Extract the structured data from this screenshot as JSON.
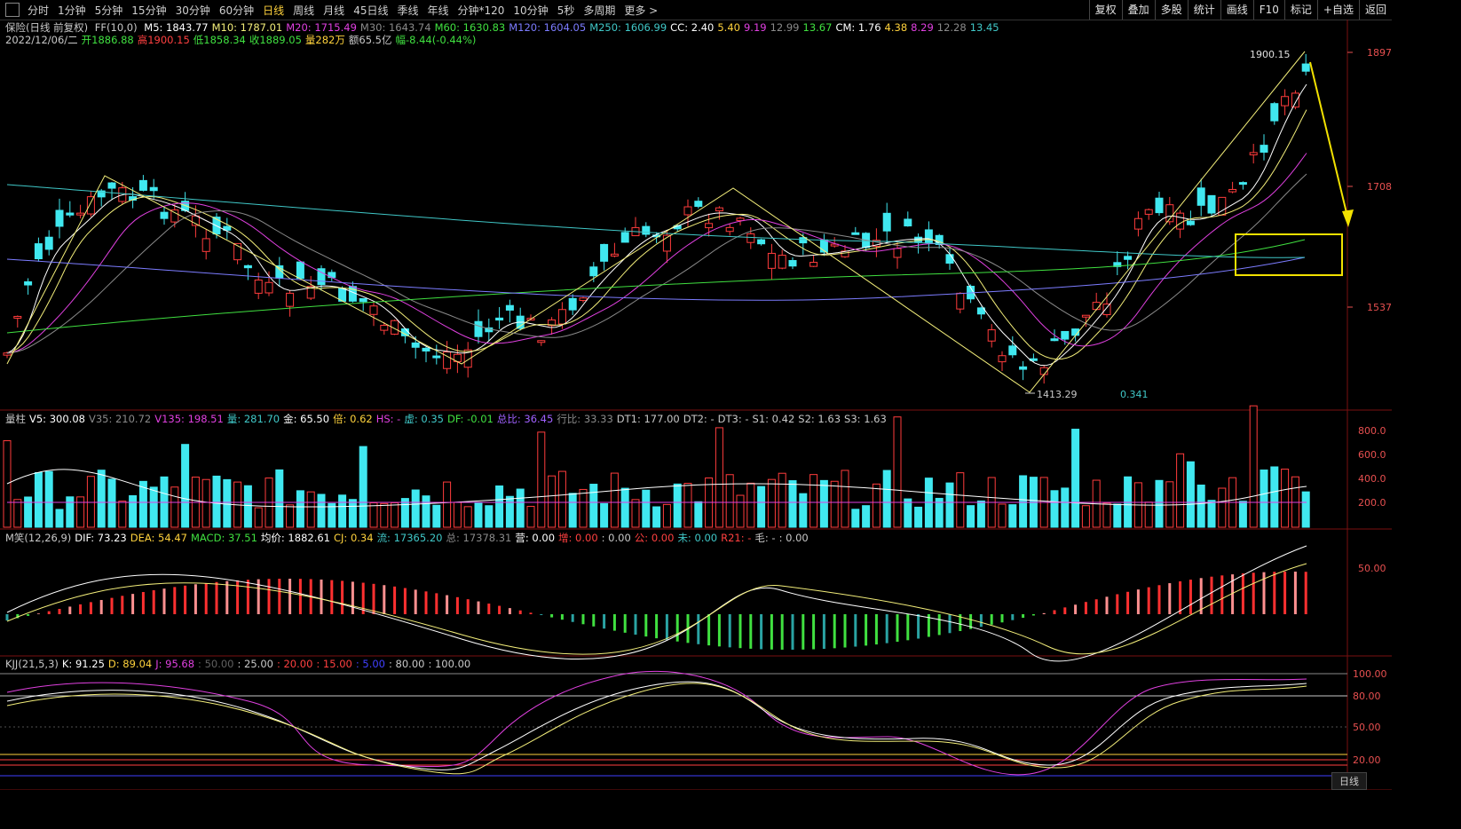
{
  "toolbar": {
    "tabs": [
      "分时",
      "1分钟",
      "5分钟",
      "15分钟",
      "30分钟",
      "60分钟",
      "日线",
      "周线",
      "月线",
      "45日线",
      "季线",
      "年线",
      "分钟*120",
      "10分钟",
      "5秒",
      "多周期",
      "更多 >"
    ],
    "active_tab": "日线",
    "right_buttons": [
      "复权",
      "叠加",
      "多股",
      "统计",
      "画线",
      "F10",
      "标记",
      "+自选",
      "返回"
    ]
  },
  "main_panel": {
    "title": "保险(日线 前复权)",
    "ff": "FF(10,0)",
    "ma": [
      {
        "label": "M5: 1843.77",
        "color": "#ffffff"
      },
      {
        "label": "M10: 1787.01",
        "color": "#f3ee7a"
      },
      {
        "label": "M20: 1715.49",
        "color": "#e040e0"
      },
      {
        "label": "M30: 1643.74",
        "color": "#8a8a8a"
      },
      {
        "label": "M60: 1630.83",
        "color": "#40e040"
      },
      {
        "label": "M120: 1604.05",
        "color": "#7c7cff"
      },
      {
        "label": "M250: 1606.99",
        "color": "#40c8c8"
      },
      {
        "label": "CC: 2.40",
        "color": "#ffffff"
      },
      {
        "label": "5.40",
        "color": "#ffd23c"
      },
      {
        "label": "9.19",
        "color": "#e040e0"
      },
      {
        "label": "12.99",
        "color": "#8a8a8a"
      },
      {
        "label": "13.67",
        "color": "#40e040"
      },
      {
        "label": "CM: 1.76",
        "color": "#ffffff"
      },
      {
        "label": "4.38",
        "color": "#ffd23c"
      },
      {
        "label": "8.29",
        "color": "#e040e0"
      },
      {
        "label": "12.28",
        "color": "#8a8a8a"
      },
      {
        "label": "13.45",
        "color": "#40c8c8"
      }
    ],
    "quote": [
      {
        "label": "2022/12/06/二",
        "color": "#c8c8c8"
      },
      {
        "label": "开1886.88",
        "color": "#40e040"
      },
      {
        "label": "高1900.15",
        "color": "#ff4040"
      },
      {
        "label": "低1858.34",
        "color": "#40e040"
      },
      {
        "label": "收1889.05",
        "color": "#40e040"
      },
      {
        "label": "量282万",
        "color": "#ffd23c"
      },
      {
        "label": "额65.5亿",
        "color": "#c8c8c8"
      },
      {
        "label": "幅-8.44(-0.44%)",
        "color": "#40e040"
      }
    ],
    "y_labels": [
      "1897",
      "1708",
      "1537"
    ],
    "high_annot": "1900.15",
    "low_annot": "1413.29",
    "misc_annot": "0.341"
  },
  "volume_panel": {
    "items": [
      {
        "label": "量柱",
        "color": "#c8c8c8"
      },
      {
        "label": "V5: 300.08",
        "color": "#ffffff"
      },
      {
        "label": "V35: 210.72",
        "color": "#8a8a8a"
      },
      {
        "label": "V135: 198.51",
        "color": "#e040e0"
      },
      {
        "label": "量: 281.70",
        "color": "#40c8c8"
      },
      {
        "label": "金: 65.50",
        "color": "#ffffff"
      },
      {
        "label": "倍: 0.62",
        "color": "#ffd23c"
      },
      {
        "label": "HS: -",
        "color": "#e040e0"
      },
      {
        "label": "虚: 0.35",
        "color": "#40c8c8"
      },
      {
        "label": "DF: -0.01",
        "color": "#40e040"
      },
      {
        "label": "总比: 36.45",
        "color": "#a060ff"
      },
      {
        "label": "行比: 33.33",
        "color": "#8a8a8a"
      },
      {
        "label": "DT1: 177.00",
        "color": "#c8c8c8"
      },
      {
        "label": "DT2: -",
        "color": "#c8c8c8"
      },
      {
        "label": "DT3: -",
        "color": "#c8c8c8"
      },
      {
        "label": "S1: 0.42",
        "color": "#c8c8c8"
      },
      {
        "label": "S2: 1.63",
        "color": "#c8c8c8"
      },
      {
        "label": "S3: 1.63",
        "color": "#c8c8c8"
      }
    ],
    "y_labels": [
      "800.0",
      "600.0",
      "400.0",
      "200.0"
    ]
  },
  "macd_panel": {
    "items": [
      {
        "label": "M笑(12,26,9)",
        "color": "#c8c8c8"
      },
      {
        "label": "DIF: 73.23",
        "color": "#ffffff"
      },
      {
        "label": "DEA: 54.47",
        "color": "#ffd23c"
      },
      {
        "label": "MACD: 37.51",
        "color": "#40e040"
      },
      {
        "label": "均价: 1882.61",
        "color": "#ffffff"
      },
      {
        "label": "CJ: 0.34",
        "color": "#ffd23c"
      },
      {
        "label": "流: 17365.20",
        "color": "#40c8c8"
      },
      {
        "label": "总: 17378.31",
        "color": "#8a8a8a"
      },
      {
        "label": "营: 0.00",
        "color": "#ffffff"
      },
      {
        "label": "增: 0.00",
        "color": "#ff4040"
      },
      {
        "label": ": 0.00",
        "color": "#c8c8c8"
      },
      {
        "label": "公: 0.00",
        "color": "#ff4040"
      },
      {
        "label": "未: 0.00",
        "color": "#40c8c8"
      },
      {
        "label": "R21: -",
        "color": "#ff4040"
      },
      {
        "label": "毛: -",
        "color": "#c8c8c8"
      },
      {
        "label": ": 0.00",
        "color": "#c8c8c8"
      }
    ],
    "y_labels": [
      "50.00"
    ]
  },
  "kdj_panel": {
    "items": [
      {
        "label": "KJJ(21,5,3)",
        "color": "#c8c8c8"
      },
      {
        "label": "K: 91.25",
        "color": "#ffffff"
      },
      {
        "label": "D: 89.04",
        "color": "#ffd23c"
      },
      {
        "label": "J: 95.68",
        "color": "#e040e0"
      },
      {
        "label": ": 50.00",
        "color": "#606060"
      },
      {
        "label": ": 25.00",
        "color": "#c8c8c8"
      },
      {
        "label": ": 20.00",
        "color": "#ff4040"
      },
      {
        "label": ": 15.00",
        "color": "#ff4040"
      },
      {
        "label": ": 5.00",
        "color": "#4040ff"
      },
      {
        "label": ": 80.00",
        "color": "#c8c8c8"
      },
      {
        "label": ": 100.00",
        "color": "#c8c8c8"
      }
    ],
    "y_labels": [
      "100.00",
      "80.00",
      "50.00",
      "20.00"
    ]
  },
  "bottom_tab": "日线"
}
